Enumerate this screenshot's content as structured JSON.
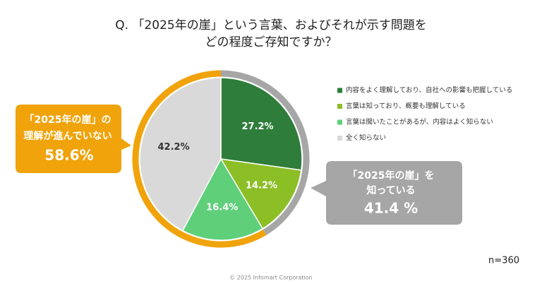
{
  "chart_data": {
    "type": "pie",
    "title": [
      "Q. 「2025年の崖」という言葉、およびそれが示す問題を",
      "どの程度ご存知ですか？"
    ],
    "categories": [
      "内容をよく理解しており、自社への影響も把握している",
      "言葉は知っており、概要も理解している",
      "言葉は聞いたことがあるが、内容はよく知らない",
      "全く知らない"
    ],
    "values": [
      27.2,
      14.2,
      16.4,
      42.2
    ],
    "value_labels": [
      "27.2%",
      "14.2%",
      "16.4%",
      "42.2%"
    ],
    "colors": [
      "#2e7d3a",
      "#8cbf26",
      "#5fcf7a",
      "#d9d9d9"
    ],
    "annotations": [
      {
        "lines": [
          "「2025年の崖」を",
          "知っている"
        ],
        "value": 41.4,
        "value_label": "41.4 %",
        "color": "#a6a6a6"
      },
      {
        "lines": [
          "「2025年の崖」の",
          "理解が進んでいない"
        ],
        "value": 58.6,
        "value_label": "58.6%",
        "color": "#f0a30a"
      }
    ],
    "note": "n=360",
    "footer": "© 2025 Infomart Corporation"
  }
}
